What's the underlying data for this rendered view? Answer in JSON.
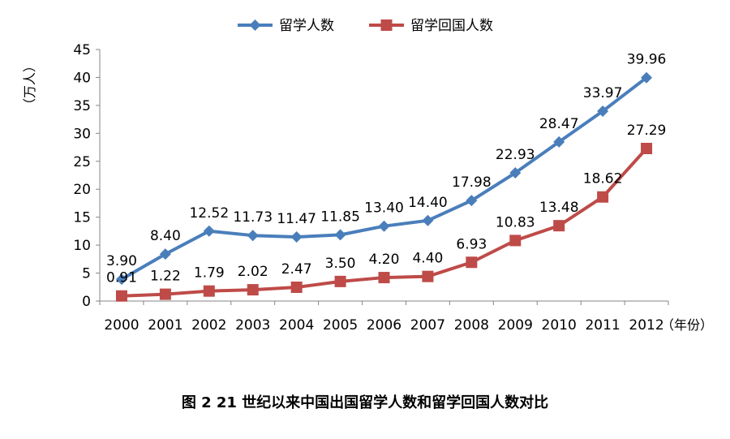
{
  "chart_data": {
    "type": "line",
    "caption": "图 2  21 世纪以来中国出国留学人数和留学回国人数对比",
    "ylabel": "（万人）",
    "xlabel": "（年份）",
    "ylim": [
      0,
      45
    ],
    "yticks": [
      0,
      5,
      10,
      15,
      20,
      25,
      30,
      35,
      40,
      45
    ],
    "categories": [
      "2000",
      "2001",
      "2002",
      "2003",
      "2004",
      "2005",
      "2006",
      "2007",
      "2008",
      "2009",
      "2010",
      "2011",
      "2012"
    ],
    "legend_position": "top",
    "grid": false,
    "series": [
      {
        "name": "留学人数",
        "color": "#4a7ebb",
        "marker": "diamond",
        "values": [
          3.9,
          8.4,
          12.52,
          11.73,
          11.47,
          11.85,
          13.4,
          14.4,
          17.98,
          22.93,
          28.47,
          33.97,
          39.96
        ],
        "labels": [
          "3.90",
          "8.40",
          "12.52",
          "11.73",
          "11.47",
          "11.85",
          "13.40",
          "14.40",
          "17.98",
          "22.93",
          "28.47",
          "33.97",
          "39.96"
        ]
      },
      {
        "name": "留学回国人数",
        "color": "#be4b48",
        "marker": "square",
        "values": [
          0.91,
          1.22,
          1.79,
          2.02,
          2.47,
          3.5,
          4.2,
          4.4,
          6.93,
          10.83,
          13.48,
          18.62,
          27.29
        ],
        "labels": [
          "0.91",
          "1.22",
          "1.79",
          "2.02",
          "2.47",
          "3.50",
          "4.20",
          "4.40",
          "6.93",
          "10.83",
          "13.48",
          "18.62",
          "27.29"
        ]
      }
    ]
  }
}
